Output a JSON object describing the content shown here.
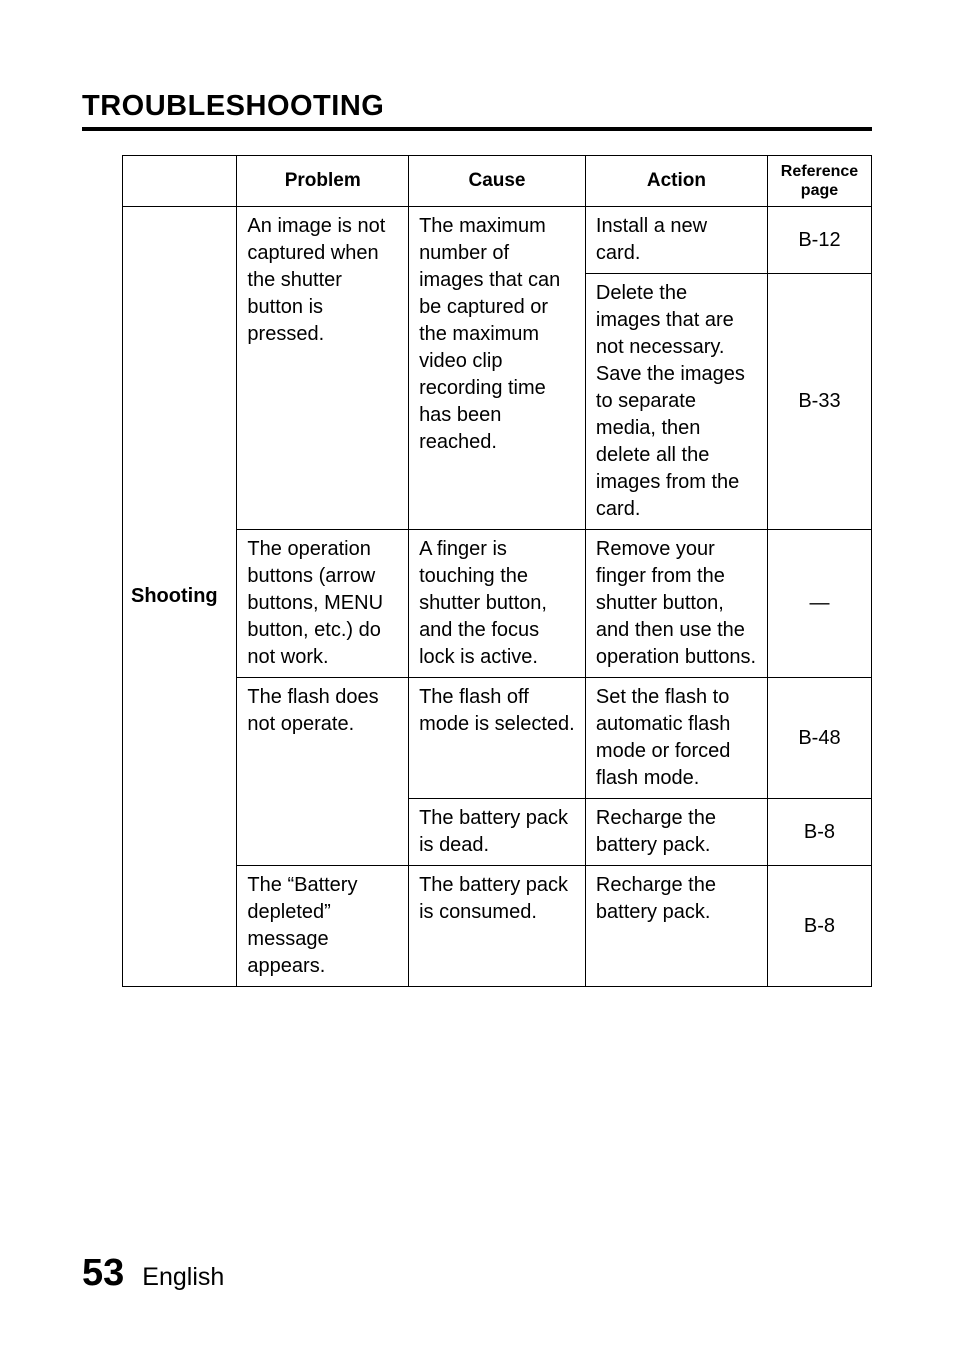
{
  "title": "TROUBLESHOOTING",
  "headers": {
    "problem": "Problem",
    "cause": "Cause",
    "action": "Action",
    "reference": "Reference page"
  },
  "category": "Shooting",
  "rows": {
    "r1": {
      "problem": "An image is not captured when the shutter button is pressed.",
      "cause": "The maximum number of images that can be captured or the maximum video clip recording time has been reached.",
      "action": "Install a new card.",
      "ref": "B-12"
    },
    "r2": {
      "action": "Delete the images that are not necessary. Save the images to separate media, then delete all the images from the card.",
      "ref": "B-33"
    },
    "r3": {
      "problem": "The operation buttons (arrow buttons, MENU button, etc.) do not work.",
      "cause": "A finger is touching the shutter button, and the focus lock is active.",
      "action": "Remove your finger from the shutter button, and then use the operation buttons.",
      "ref": "—"
    },
    "r4": {
      "problem": "The flash does not operate.",
      "cause": "The flash off mode is selected.",
      "action": "Set the flash to automatic flash mode or forced flash mode.",
      "ref": "B-48"
    },
    "r5": {
      "cause": "The battery pack is dead.",
      "action": "Recharge the battery pack.",
      "ref": "B-8"
    },
    "r6": {
      "problem": "The “Battery depleted” message appears.",
      "cause": "The battery pack is consumed.",
      "action": "Recharge the battery pack.",
      "ref": "B-8"
    }
  },
  "footer": {
    "page": "53",
    "lang": "English"
  }
}
